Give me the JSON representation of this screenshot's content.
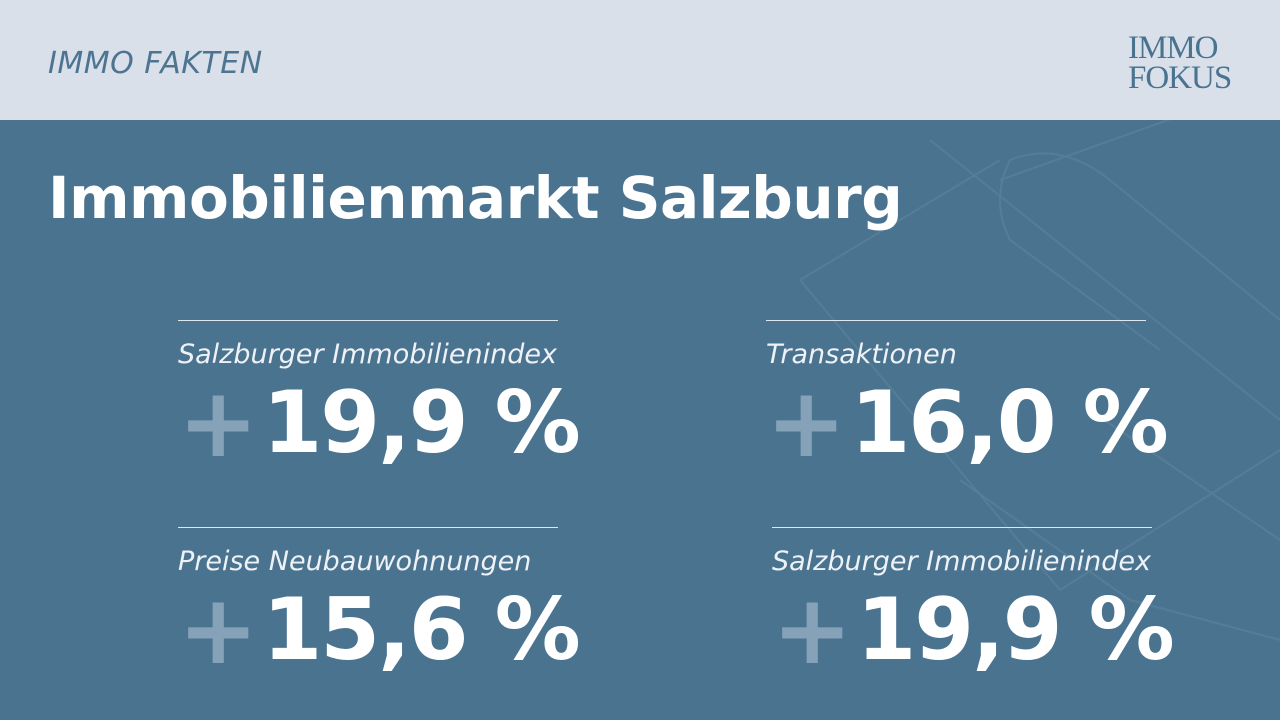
{
  "header": {
    "series_label": "IMMO FAKTEN",
    "logo_line1": "IMMO",
    "logo_line2": "FOKUS"
  },
  "main": {
    "title": "Immobilienmarkt Salzburg",
    "stats": [
      {
        "label": "Salzburger Immobilienindex",
        "sign": "+",
        "value": "19,9 %"
      },
      {
        "label": "Transaktionen",
        "sign": "+",
        "value": "16,0 %"
      },
      {
        "label": "Preise Neubauwohnungen",
        "sign": "+",
        "value": "15,6 %"
      },
      {
        "label": "Salzburger Immobilienindex",
        "sign": "+",
        "value": "19,9 %"
      }
    ]
  },
  "colors": {
    "panel_background": "#4a7390",
    "header_background": "#d9e0ea",
    "plus_sign": "#86a2b9",
    "text": "#ffffff"
  }
}
